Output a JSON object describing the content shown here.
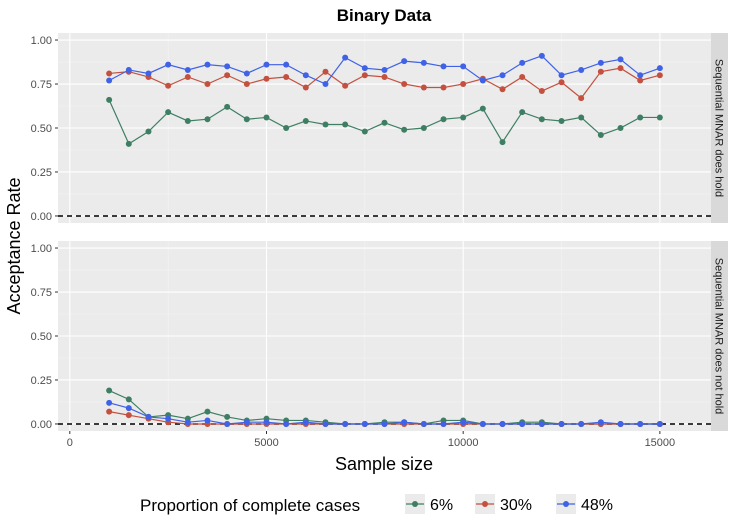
{
  "chart_data": {
    "type": "line",
    "title": "Binary Data",
    "xlabel": "Sample size",
    "ylabel": "Acceptance Rate",
    "x_ticks": [
      0,
      5000,
      10000,
      15000
    ],
    "x_tick_labels": [
      "0",
      "5000",
      "10000",
      "15000"
    ],
    "xlim": [
      -300,
      16300
    ],
    "y_ticks": [
      0,
      0.25,
      0.5,
      0.75,
      1
    ],
    "y_tick_labels": [
      "0.00",
      "0.25",
      "0.50",
      "0.75",
      "1.00"
    ],
    "ylim": [
      -0.04,
      1.04
    ],
    "reference_line": 0,
    "grid": true,
    "legend": {
      "title": "Proportion of complete cases",
      "position": "bottom",
      "entries": [
        "6%",
        "30%",
        "48%"
      ]
    },
    "colors": [
      "#3e7f64",
      "#c4513f",
      "#3f62e6"
    ],
    "x": [
      1000,
      1500,
      2000,
      2500,
      3000,
      3500,
      4000,
      4500,
      5000,
      5500,
      6000,
      6500,
      7000,
      7500,
      8000,
      8500,
      9000,
      9500,
      10000,
      10500,
      11000,
      11500,
      12000,
      12500,
      13000,
      13500,
      14000,
      14500,
      15000
    ],
    "panels": [
      {
        "strip": "Sequential MNAR does hold",
        "series": [
          {
            "name": "6%",
            "values": [
              0.66,
              0.41,
              0.48,
              0.59,
              0.54,
              0.55,
              0.62,
              0.55,
              0.56,
              0.5,
              0.54,
              0.52,
              0.52,
              0.48,
              0.53,
              0.49,
              0.5,
              0.55,
              0.56,
              0.61,
              0.42,
              0.59,
              0.55,
              0.54,
              0.56,
              0.46,
              0.5,
              0.56,
              0.56
            ]
          },
          {
            "name": "30%",
            "values": [
              0.81,
              0.82,
              0.79,
              0.74,
              0.79,
              0.75,
              0.8,
              0.75,
              0.78,
              0.79,
              0.73,
              0.82,
              0.74,
              0.8,
              0.79,
              0.75,
              0.73,
              0.73,
              0.75,
              0.78,
              0.72,
              0.79,
              0.71,
              0.76,
              0.67,
              0.82,
              0.84,
              0.77,
              0.8
            ]
          },
          {
            "name": "48%",
            "values": [
              0.77,
              0.83,
              0.81,
              0.86,
              0.83,
              0.86,
              0.85,
              0.81,
              0.86,
              0.86,
              0.8,
              0.75,
              0.9,
              0.84,
              0.83,
              0.88,
              0.87,
              0.85,
              0.85,
              0.77,
              0.8,
              0.87,
              0.91,
              0.8,
              0.83,
              0.87,
              0.89,
              0.8,
              0.84
            ]
          }
        ]
      },
      {
        "strip": "Sequential MNAR does not hold",
        "series": [
          {
            "name": "6%",
            "values": [
              0.19,
              0.14,
              0.04,
              0.05,
              0.03,
              0.07,
              0.04,
              0.02,
              0.03,
              0.02,
              0.02,
              0.01,
              0.0,
              0.0,
              0.01,
              0.01,
              0.0,
              0.02,
              0.02,
              0.0,
              0.0,
              0.01,
              0.01,
              0.0,
              0.0,
              0.0,
              0.0,
              0.0,
              0.0
            ]
          },
          {
            "name": "30%",
            "values": [
              0.07,
              0.05,
              0.03,
              0.01,
              0.0,
              0.0,
              0.0,
              0.0,
              0.0,
              0.0,
              0.0,
              0.0,
              0.0,
              0.0,
              0.0,
              0.0,
              0.0,
              0.0,
              0.0,
              0.0,
              0.0,
              0.0,
              0.0,
              0.0,
              0.0,
              0.0,
              0.0,
              0.0,
              0.0
            ]
          },
          {
            "name": "48%",
            "values": [
              0.12,
              0.09,
              0.04,
              0.03,
              0.01,
              0.02,
              0.0,
              0.01,
              0.01,
              0.0,
              0.01,
              0.0,
              0.0,
              0.0,
              0.0,
              0.01,
              0.0,
              0.0,
              0.01,
              0.0,
              0.0,
              0.0,
              0.0,
              0.0,
              0.0,
              0.01,
              0.0,
              0.0,
              0.0
            ]
          }
        ]
      }
    ]
  }
}
